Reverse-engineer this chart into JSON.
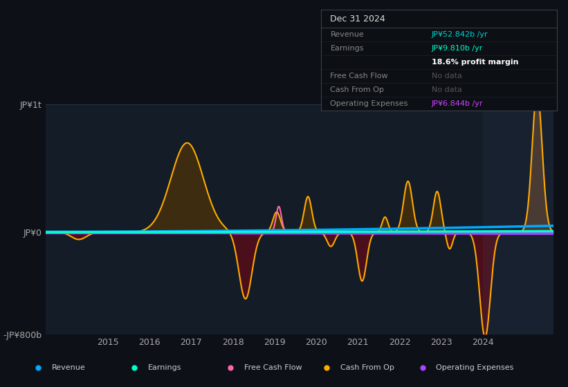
{
  "bg_color": "#0d1117",
  "chart_bg": "#131c27",
  "title": "Dec 31 2024",
  "ylim": [
    -800,
    1000
  ],
  "xlim": [
    2013.5,
    2025.7
  ],
  "yticks_labels": [
    "JP¥1t",
    "JP¥0",
    "-JP¥800b"
  ],
  "yticks_values": [
    1000,
    0,
    -800
  ],
  "xticks": [
    2015,
    2016,
    2017,
    2018,
    2019,
    2020,
    2021,
    2022,
    2023,
    2024
  ],
  "legend": [
    {
      "label": "Revenue",
      "color": "#00aaff"
    },
    {
      "label": "Earnings",
      "color": "#00ffcc"
    },
    {
      "label": "Free Cash Flow",
      "color": "#ff66aa"
    },
    {
      "label": "Cash From Op",
      "color": "#ffaa00"
    },
    {
      "label": "Operating Expenses",
      "color": "#aa44ff"
    }
  ],
  "highlight_x_start": 2024.0,
  "info": {
    "title": "Dec 31 2024",
    "rows": [
      {
        "label": "Revenue",
        "value": "JP¥52.842b /yr",
        "value_color": "#00d4d4"
      },
      {
        "label": "Earnings",
        "value": "JP¥9.810b /yr",
        "value_color": "#00ffcc"
      },
      {
        "label": "",
        "value": "18.6% profit margin",
        "value_color": "#ffffff",
        "bold": true
      },
      {
        "label": "Free Cash Flow",
        "value": "No data",
        "value_color": "#555555"
      },
      {
        "label": "Cash From Op",
        "value": "No data",
        "value_color": "#555555"
      },
      {
        "label": "Operating Expenses",
        "value": "JP¥6.844b /yr",
        "value_color": "#cc44ff"
      }
    ]
  }
}
